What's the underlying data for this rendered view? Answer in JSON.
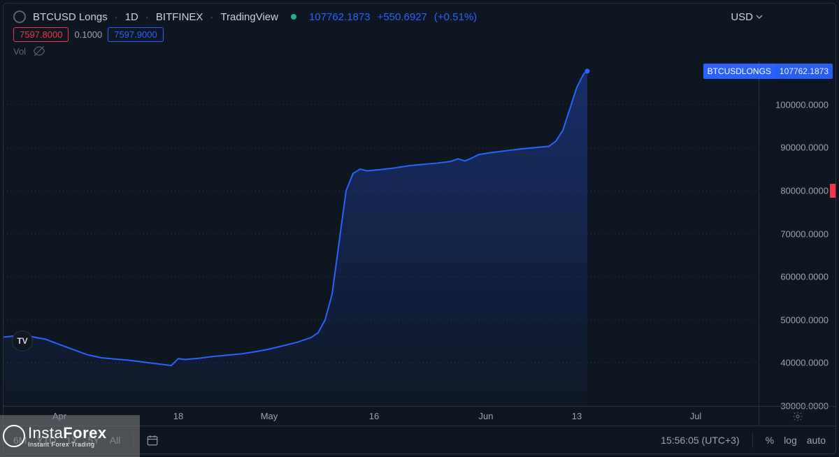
{
  "header": {
    "symbol": "BTCUSD Longs",
    "interval": "1D",
    "exchange": "BITFINEX",
    "provider": "TradingView",
    "last_price": "107762.1873",
    "change_abs": "+550.6927",
    "change_pct": "(+0.51%)",
    "currency": "USD"
  },
  "ohlc_row": {
    "bid": "7597.8000",
    "spread": "0.1000",
    "ask": "7597.9000"
  },
  "vol_label": "Vol",
  "chart": {
    "type": "area-line",
    "background_color": "#0e1621",
    "grid_color": "#2a3441",
    "line_color": "#2962ff",
    "fill_top": "rgba(41,98,255,0.32)",
    "fill_bottom": "rgba(41,98,255,0.02)",
    "line_width": 2,
    "ylim": [
      30000,
      110000
    ],
    "yticks": [
      30000,
      40000,
      50000,
      60000,
      70000,
      80000,
      90000,
      100000
    ],
    "ytick_labels": [
      "30000.0000",
      "40000.0000",
      "50000.0000",
      "60000.0000",
      "70000.0000",
      "80000.0000",
      "90000.0000",
      "100000.0000"
    ],
    "last_value": 107762.1873,
    "last_badge_symbol": "BTCUSDLONGS",
    "last_badge_value": "107762.1873",
    "x_total_days": 108,
    "xticks": [
      {
        "day": 8,
        "label": "Apr"
      },
      {
        "day": 25,
        "label": "18"
      },
      {
        "day": 38,
        "label": "May"
      },
      {
        "day": 53,
        "label": "16"
      },
      {
        "day": 69,
        "label": "Jun"
      },
      {
        "day": 82,
        "label": "13"
      },
      {
        "day": 99,
        "label": "Jul"
      }
    ],
    "series": [
      {
        "x": 0,
        "y": 46000
      },
      {
        "x": 2,
        "y": 46300
      },
      {
        "x": 4,
        "y": 46100
      },
      {
        "x": 6,
        "y": 45500
      },
      {
        "x": 8,
        "y": 44300
      },
      {
        "x": 10,
        "y": 43100
      },
      {
        "x": 12,
        "y": 41900
      },
      {
        "x": 14,
        "y": 41200
      },
      {
        "x": 16,
        "y": 40900
      },
      {
        "x": 18,
        "y": 40600
      },
      {
        "x": 20,
        "y": 40200
      },
      {
        "x": 22,
        "y": 39800
      },
      {
        "x": 24,
        "y": 39400
      },
      {
        "x": 25,
        "y": 41000
      },
      {
        "x": 26,
        "y": 40800
      },
      {
        "x": 28,
        "y": 41100
      },
      {
        "x": 30,
        "y": 41500
      },
      {
        "x": 32,
        "y": 41800
      },
      {
        "x": 34,
        "y": 42100
      },
      {
        "x": 36,
        "y": 42600
      },
      {
        "x": 38,
        "y": 43200
      },
      {
        "x": 40,
        "y": 44000
      },
      {
        "x": 42,
        "y": 44800
      },
      {
        "x": 44,
        "y": 45900
      },
      {
        "x": 45,
        "y": 47000
      },
      {
        "x": 46,
        "y": 50000
      },
      {
        "x": 47,
        "y": 56000
      },
      {
        "x": 48,
        "y": 68000
      },
      {
        "x": 49,
        "y": 80000
      },
      {
        "x": 50,
        "y": 84000
      },
      {
        "x": 51,
        "y": 85000
      },
      {
        "x": 52,
        "y": 84600
      },
      {
        "x": 54,
        "y": 84900
      },
      {
        "x": 56,
        "y": 85300
      },
      {
        "x": 58,
        "y": 85800
      },
      {
        "x": 60,
        "y": 86100
      },
      {
        "x": 62,
        "y": 86400
      },
      {
        "x": 64,
        "y": 86800
      },
      {
        "x": 65,
        "y": 87400
      },
      {
        "x": 66,
        "y": 86900
      },
      {
        "x": 67,
        "y": 87600
      },
      {
        "x": 68,
        "y": 88400
      },
      {
        "x": 70,
        "y": 88900
      },
      {
        "x": 72,
        "y": 89300
      },
      {
        "x": 74,
        "y": 89700
      },
      {
        "x": 76,
        "y": 90000
      },
      {
        "x": 78,
        "y": 90300
      },
      {
        "x": 79,
        "y": 91500
      },
      {
        "x": 80,
        "y": 94000
      },
      {
        "x": 81,
        "y": 99000
      },
      {
        "x": 82,
        "y": 104000
      },
      {
        "x": 83,
        "y": 107200
      },
      {
        "x": 83.5,
        "y": 107762
      }
    ]
  },
  "footer": {
    "timeframes": [
      "6M",
      "YTD",
      "1Y",
      "5Y",
      "All"
    ],
    "clock": "15:56:05 (UTC+3)",
    "opts": [
      "%",
      "log",
      "auto"
    ]
  },
  "watermark": {
    "brand_a": "Insta",
    "brand_b": "Forex",
    "tag": "Instant Forex Trading"
  }
}
